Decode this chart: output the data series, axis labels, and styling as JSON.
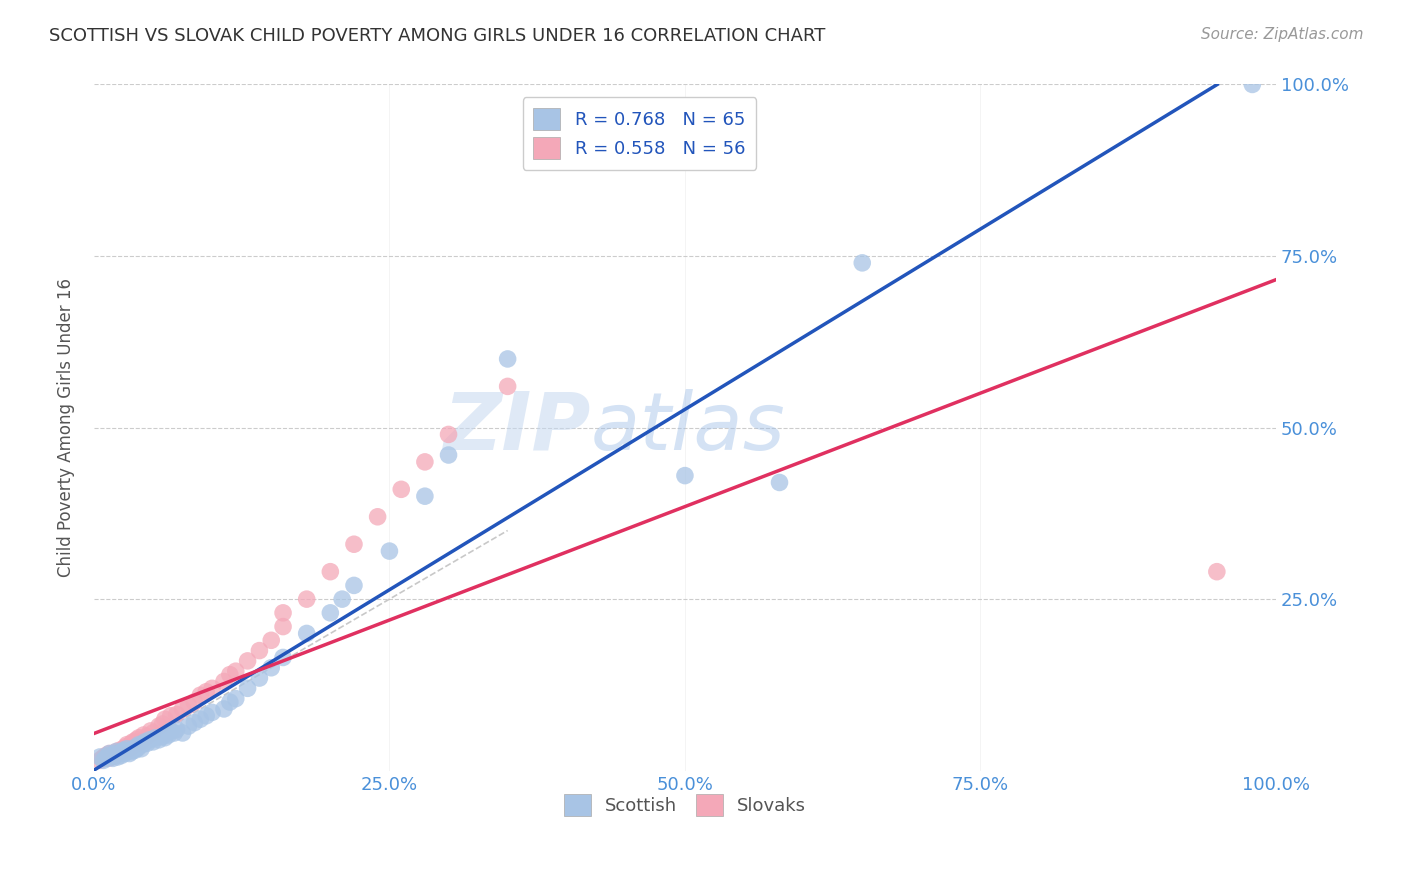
{
  "title": "SCOTTISH VS SLOVAK CHILD POVERTY AMONG GIRLS UNDER 16 CORRELATION CHART",
  "source": "Source: ZipAtlas.com",
  "ylabel": "Child Poverty Among Girls Under 16",
  "watermark_zip": "ZIP",
  "watermark_atlas": "atlas",
  "scottish_R": 0.768,
  "scottish_N": 65,
  "slovak_R": 0.558,
  "slovak_N": 56,
  "scottish_color": "#a8c4e5",
  "slovak_color": "#f4a8b8",
  "scottish_line_color": "#2255bb",
  "slovak_line_color": "#e03060",
  "diagonal_color": "#bbbbbb",
  "background_color": "#ffffff",
  "grid_color": "#cccccc",
  "axis_label_color": "#4a90d9",
  "title_color": "#333333",
  "source_color": "#999999",
  "xlim": [
    0.0,
    1.0
  ],
  "ylim": [
    0.0,
    1.0
  ],
  "xticks": [
    0.0,
    0.25,
    0.5,
    0.75,
    1.0
  ],
  "yticks": [
    0.0,
    0.25,
    0.5,
    0.75,
    1.0
  ],
  "xtick_labels": [
    "0.0%",
    "25.0%",
    "50.0%",
    "75.0%",
    "100.0%"
  ],
  "right_ytick_labels": [
    "",
    "25.0%",
    "50.0%",
    "75.0%",
    "100.0%"
  ],
  "scottish_x": [
    0.005,
    0.008,
    0.01,
    0.012,
    0.013,
    0.015,
    0.016,
    0.017,
    0.018,
    0.019,
    0.02,
    0.022,
    0.023,
    0.024,
    0.025,
    0.026,
    0.027,
    0.028,
    0.03,
    0.031,
    0.032,
    0.033,
    0.035,
    0.036,
    0.037,
    0.038,
    0.04,
    0.041,
    0.043,
    0.045,
    0.047,
    0.05,
    0.052,
    0.055,
    0.058,
    0.06,
    0.063,
    0.065,
    0.068,
    0.07,
    0.075,
    0.08,
    0.085,
    0.09,
    0.095,
    0.1,
    0.11,
    0.115,
    0.12,
    0.13,
    0.14,
    0.15,
    0.16,
    0.18,
    0.2,
    0.21,
    0.22,
    0.25,
    0.28,
    0.3,
    0.35,
    0.5,
    0.58,
    0.65,
    0.98
  ],
  "scottish_y": [
    0.02,
    0.015,
    0.018,
    0.022,
    0.025,
    0.02,
    0.018,
    0.022,
    0.025,
    0.028,
    0.02,
    0.025,
    0.022,
    0.028,
    0.03,
    0.025,
    0.028,
    0.032,
    0.025,
    0.03,
    0.028,
    0.032,
    0.03,
    0.035,
    0.033,
    0.038,
    0.032,
    0.038,
    0.042,
    0.04,
    0.045,
    0.042,
    0.048,
    0.045,
    0.05,
    0.048,
    0.052,
    0.058,
    0.055,
    0.06,
    0.055,
    0.065,
    0.07,
    0.075,
    0.08,
    0.085,
    0.09,
    0.1,
    0.105,
    0.12,
    0.135,
    0.15,
    0.165,
    0.2,
    0.23,
    0.25,
    0.27,
    0.32,
    0.4,
    0.46,
    0.6,
    0.43,
    0.42,
    0.74,
    1.0
  ],
  "slovak_x": [
    0.005,
    0.007,
    0.009,
    0.01,
    0.012,
    0.013,
    0.015,
    0.016,
    0.018,
    0.019,
    0.02,
    0.022,
    0.023,
    0.025,
    0.026,
    0.027,
    0.028,
    0.03,
    0.032,
    0.033,
    0.035,
    0.036,
    0.038,
    0.04,
    0.042,
    0.045,
    0.048,
    0.05,
    0.055,
    0.058,
    0.06,
    0.065,
    0.07,
    0.075,
    0.08,
    0.085,
    0.09,
    0.095,
    0.1,
    0.11,
    0.115,
    0.12,
    0.13,
    0.14,
    0.15,
    0.16,
    0.18,
    0.2,
    0.22,
    0.24,
    0.26,
    0.28,
    0.3,
    0.35,
    0.16,
    0.95
  ],
  "slovak_y": [
    0.015,
    0.018,
    0.02,
    0.022,
    0.018,
    0.025,
    0.02,
    0.025,
    0.022,
    0.028,
    0.025,
    0.03,
    0.028,
    0.032,
    0.03,
    0.035,
    0.038,
    0.032,
    0.04,
    0.042,
    0.038,
    0.045,
    0.048,
    0.042,
    0.052,
    0.05,
    0.058,
    0.055,
    0.065,
    0.068,
    0.075,
    0.08,
    0.082,
    0.09,
    0.095,
    0.1,
    0.11,
    0.115,
    0.12,
    0.13,
    0.14,
    0.145,
    0.16,
    0.175,
    0.19,
    0.21,
    0.25,
    0.29,
    0.33,
    0.37,
    0.41,
    0.45,
    0.49,
    0.56,
    0.23,
    0.29
  ],
  "figsize": [
    14.06,
    8.92
  ],
  "dpi": 100
}
